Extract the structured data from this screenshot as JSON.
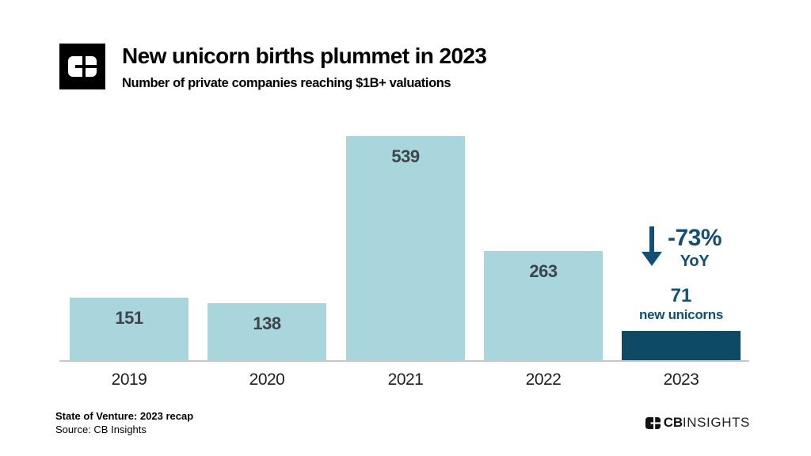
{
  "header": {
    "title": "New unicorn births plummet in 2023",
    "subtitle": "Number of private companies reaching $1B+ valuations"
  },
  "chart_data": {
    "type": "bar",
    "categories": [
      "2019",
      "2020",
      "2021",
      "2022",
      "2023"
    ],
    "values": [
      151,
      138,
      539,
      263,
      71
    ],
    "title": "New unicorn births plummet in 2023",
    "xlabel": "",
    "ylabel": "",
    "ylim": [
      0,
      565
    ],
    "grid": false,
    "legend": "none",
    "bar_color": "#a9d6dd",
    "highlight_color": "#0e4a63",
    "highlight_index": 4,
    "value_label_color": "#3d444a",
    "axis_color": "#c9c9c9"
  },
  "annotation": {
    "delta": "-73%",
    "period": "YoY",
    "value": "71",
    "value_suffix": "new unicorns",
    "color": "#134e74"
  },
  "footer": {
    "report": "State of Venture: 2023 recap",
    "source": "Source: CB Insights",
    "brand_cb": "CB",
    "brand_insights": "INSIGHTS"
  }
}
